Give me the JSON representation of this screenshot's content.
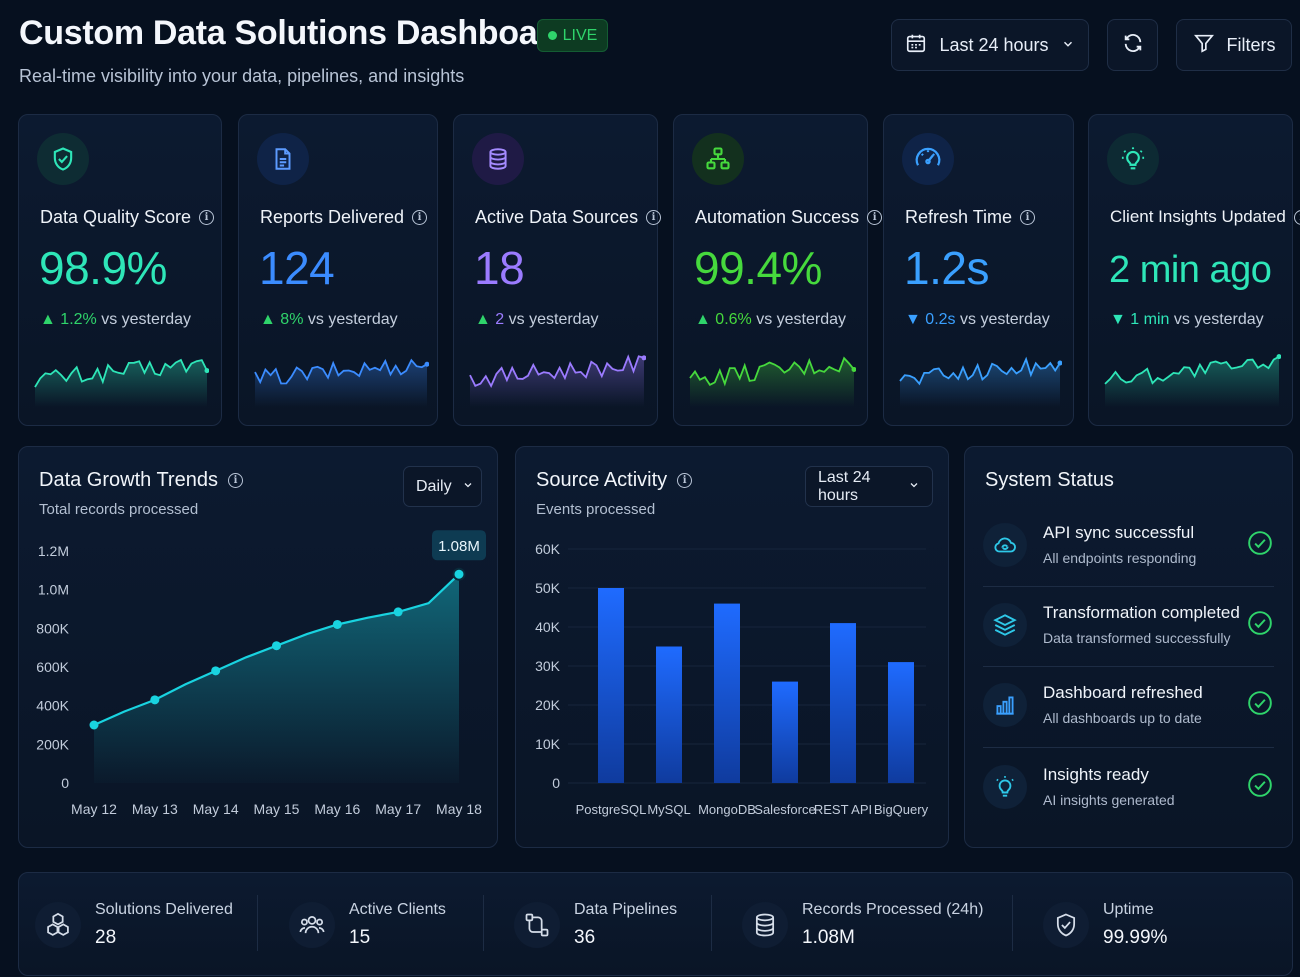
{
  "header": {
    "title": "Custom Data Solutions Dashboard",
    "live_label": "LIVE",
    "subtitle": "Real-time visibility into your data, pipelines, and insights",
    "time_range": "Last 24 hours",
    "filters_label": "Filters",
    "icons": [
      "calendar-icon",
      "chevron-down-icon",
      "refresh-icon",
      "filter-icon"
    ]
  },
  "kpis": [
    {
      "label": "Data Quality Score",
      "value": "98.9%",
      "delta": "1.2%",
      "delta_suffix": " vs yesterday",
      "direction": "up",
      "color": "#2ee6b8",
      "icon": "shield-check-icon"
    },
    {
      "label": "Reports Delivered",
      "value": "124",
      "delta": "8%",
      "delta_suffix": " vs yesterday",
      "direction": "up",
      "color": "#3b8cff",
      "icon": "document-icon"
    },
    {
      "label": "Active Data Sources",
      "value": "18",
      "delta": "2",
      "delta_suffix": " vs yesterday",
      "direction": "up",
      "color": "#9b7bff",
      "icon": "database-icon"
    },
    {
      "label": "Automation Success",
      "value": "99.4%",
      "delta": "0.6%",
      "delta_suffix": " vs yesterday",
      "direction": "up",
      "color": "#46d93d",
      "icon": "workflow-icon"
    },
    {
      "label": "Refresh Time",
      "value": "1.2s",
      "delta": "0.2s",
      "delta_suffix": " vs yesterday",
      "direction": "down",
      "color": "#3aa0ff",
      "icon": "gauge-icon"
    },
    {
      "label": "Client Insights Updated",
      "value": "2 min ago",
      "delta": "1 min",
      "delta_suffix": " vs yesterday",
      "direction": "down",
      "color": "#2ee6b8",
      "icon": "lightbulb-icon"
    }
  ],
  "growth": {
    "title": "Data Growth Trends",
    "subtitle": "Total records processed",
    "interval": "Daily",
    "tooltip": "1.08M"
  },
  "activity": {
    "title": "Source Activity",
    "subtitle": "Events processed",
    "range": "Last 24 hours"
  },
  "chart_data": [
    {
      "type": "area",
      "title": "Data Growth Trends",
      "subtitle": "Total records processed",
      "x": [
        "May 12",
        "May 12.5",
        "May 13",
        "May 13.5",
        "May 14",
        "May 14.5",
        "May 15",
        "May 15.5",
        "May 16",
        "May 16.5",
        "May 17",
        "May 17.5",
        "May 18"
      ],
      "values": [
        300000,
        370000,
        430000,
        510000,
        580000,
        650000,
        710000,
        770000,
        820000,
        855000,
        885000,
        930000,
        1080000
      ],
      "markers": [
        true,
        false,
        true,
        false,
        true,
        false,
        true,
        false,
        true,
        false,
        true,
        false,
        true
      ],
      "tick_labels": [
        "May 12",
        "May 13",
        "May 14",
        "May 15",
        "May 16",
        "May 17",
        "May 18"
      ],
      "y_ticks": [
        "0",
        "200K",
        "400K",
        "600K",
        "800K",
        "1.0M",
        "1.2M"
      ],
      "ylim": [
        0,
        1200000
      ],
      "color": "#19d3e0"
    },
    {
      "type": "bar",
      "title": "Source Activity",
      "subtitle": "Events processed",
      "categories": [
        "PostgreSQL",
        "MySQL",
        "MongoDB",
        "Salesforce",
        "REST API",
        "BigQuery"
      ],
      "values": [
        50000,
        35000,
        46000,
        26000,
        41000,
        31000
      ],
      "y_ticks": [
        "0",
        "10K",
        "20K",
        "30K",
        "40K",
        "50K",
        "60K"
      ],
      "ylim": [
        0,
        60000
      ],
      "color": "#1e6bff"
    }
  ],
  "system_status": {
    "title": "System Status",
    "items": [
      {
        "title": "API sync successful",
        "sub": "All endpoints responding",
        "icon": "cloud-sync-icon"
      },
      {
        "title": "Transformation completed",
        "sub": "Data transformed successfully",
        "icon": "layers-icon"
      },
      {
        "title": "Dashboard refreshed",
        "sub": "All dashboards up to date",
        "icon": "bar-chart-icon"
      },
      {
        "title": "Insights ready",
        "sub": "AI insights generated",
        "icon": "lightbulb-icon"
      }
    ]
  },
  "summary": [
    {
      "label": "Solutions Delivered",
      "value": "28",
      "icon": "cubes-icon"
    },
    {
      "label": "Active Clients",
      "value": "15",
      "icon": "users-icon"
    },
    {
      "label": "Data Pipelines",
      "value": "36",
      "icon": "pipeline-icon"
    },
    {
      "label": "Records Processed (24h)",
      "value": "1.08M",
      "icon": "database-icon"
    },
    {
      "label": "Uptime",
      "value": "99.99%",
      "icon": "shield-check-icon"
    }
  ]
}
